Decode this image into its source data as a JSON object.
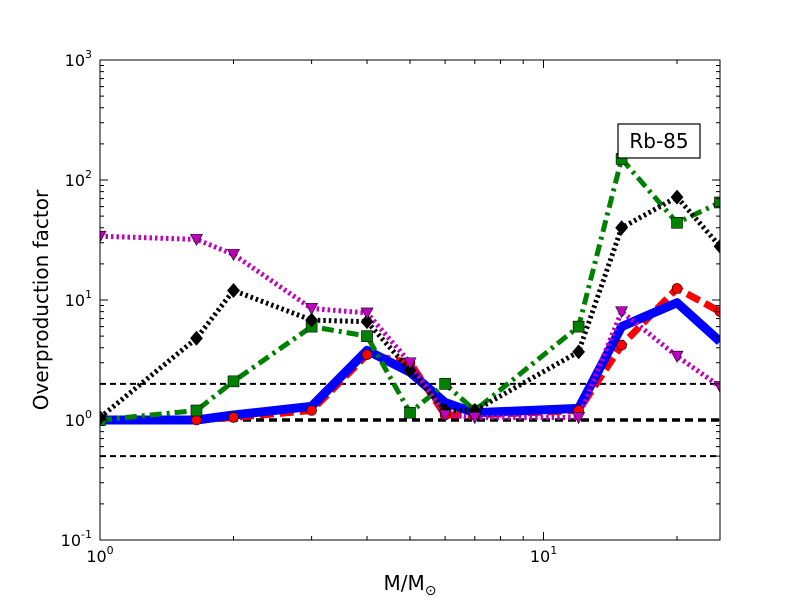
{
  "chart_data": {
    "type": "line",
    "xlabel": "M/M",
    "xlabel_sub": "⊙",
    "ylabel": "Overproduction factor",
    "xscale": "log",
    "yscale": "log",
    "xlim": [
      1,
      25
    ],
    "ylim": [
      0.1,
      1000
    ],
    "x_ticks": [
      {
        "value": 1,
        "base": "10",
        "exp": "0"
      },
      {
        "value": 10,
        "base": "10",
        "exp": "1"
      }
    ],
    "y_ticks": [
      {
        "value": 0.1,
        "base": "10",
        "exp": "-1"
      },
      {
        "value": 1,
        "base": "10",
        "exp": "0"
      },
      {
        "value": 10,
        "base": "10",
        "exp": "1"
      },
      {
        "value": 100,
        "base": "10",
        "exp": "2"
      },
      {
        "value": 1000,
        "base": "10",
        "exp": "3"
      }
    ],
    "annotation": "Rb-85",
    "annotation_position": "upper-right",
    "reference_lines": [
      {
        "y": 0.5,
        "style": "dashed",
        "color": "#000000"
      },
      {
        "y": 1,
        "style": "dashed-thick",
        "color": "#000000"
      },
      {
        "y": 2,
        "style": "dashed",
        "color": "#000000"
      }
    ],
    "series": [
      {
        "color": "#ff0000",
        "marker": "circle",
        "line": "dashed",
        "x": [
          1,
          1.65,
          2,
          3,
          4,
          5,
          6,
          7,
          12,
          15,
          20,
          25
        ],
        "y": [
          1.0,
          1.0,
          1.05,
          1.2,
          3.5,
          3.0,
          1.1,
          1.1,
          1.2,
          4.2,
          12.5,
          8.0
        ]
      },
      {
        "color": "#0000ff",
        "marker": "none",
        "line": "solid",
        "x": [
          1,
          1.65,
          2,
          3,
          4,
          5,
          6,
          7,
          12,
          15,
          20,
          25
        ],
        "y": [
          1.0,
          1.0,
          1.1,
          1.3,
          3.8,
          2.5,
          1.4,
          1.15,
          1.25,
          6.0,
          9.5,
          4.5
        ]
      },
      {
        "color": "#008000",
        "marker": "square",
        "line": "dashdot",
        "x": [
          1,
          1.65,
          2,
          3,
          4,
          5,
          6,
          7,
          12,
          15,
          20,
          25
        ],
        "y": [
          1.0,
          1.2,
          2.1,
          6.0,
          5.0,
          1.15,
          2.0,
          1.2,
          6.0,
          150,
          44,
          65
        ]
      },
      {
        "color": "#000000",
        "marker": "diamond",
        "line": "dotted",
        "x": [
          1,
          1.65,
          2,
          3,
          4,
          5,
          6,
          7,
          12,
          15,
          20,
          25
        ],
        "y": [
          1.05,
          4.8,
          12,
          6.8,
          6.6,
          2.6,
          1.2,
          1.2,
          3.7,
          40,
          72,
          28
        ]
      },
      {
        "color": "#bf00bf",
        "marker": "triangle-down",
        "line": "dotted",
        "x": [
          1,
          1.65,
          2,
          3,
          4,
          5,
          6,
          7,
          12,
          15,
          20,
          25
        ],
        "y": [
          34,
          32,
          24,
          8.5,
          7.8,
          3.0,
          1.1,
          1.05,
          1.05,
          8.0,
          3.4,
          1.9
        ]
      }
    ]
  }
}
